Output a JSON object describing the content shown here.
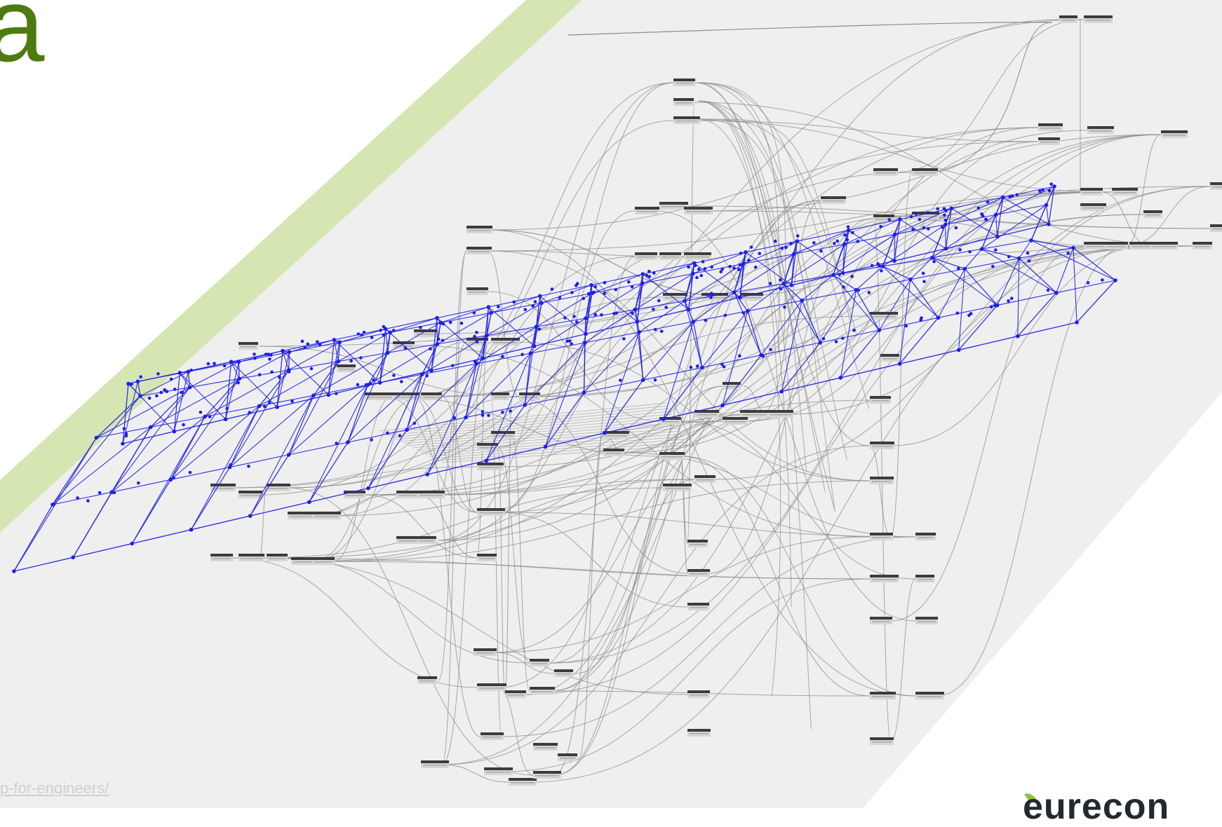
{
  "slide": {
    "title": "a",
    "source_link": "p-for-engineers/",
    "logo_text": "eurecon"
  },
  "colors": {
    "accent_band": "#d5e6b2",
    "title_green": "#4f7a12",
    "canvas_bg": "#efefef",
    "wireframe_blue": "#1f1fe6",
    "wire_grey": "#8c8c8c",
    "node_header": "#3c3c3c",
    "node_body": "#d6d6d2",
    "logo_leaf": "#8dc63f",
    "logo_text": "#222a2f"
  },
  "graph": {
    "description_visible": false,
    "node_count_estimate": 120
  }
}
